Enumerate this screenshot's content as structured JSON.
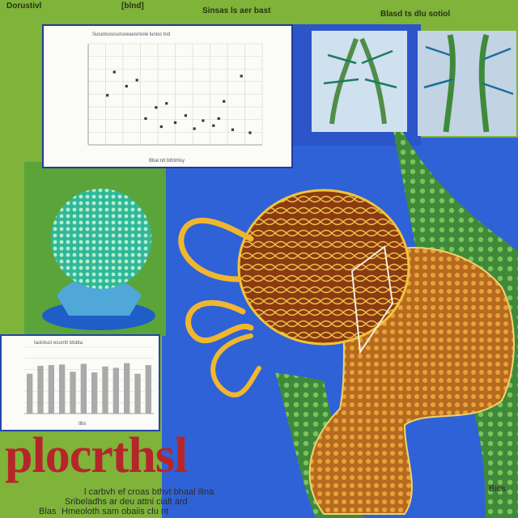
{
  "header": {
    "left_text": "Dorustivl",
    "left_text2": "[blnd]",
    "center_text": "Sinsas ls aer bast",
    "right_text": "Blasd ts dlu sotiol"
  },
  "title": "plocrthsl",
  "captions": {
    "line1": "l carbvh ef croas bthvt  bhaal  ilina",
    "line2": "Sribeladhs ar deu attni  cialt ard",
    "line3": "Hmeoloth sam obaiis clu nt",
    "bottom_left": "Blas",
    "bottom_right": "Bics"
  },
  "scatter_panel": {
    "title": "Suiuolsoscuiruseaosmisle luniss tnd",
    "xlabel": "Bbal ntt bthtihlsy"
  },
  "bar_panel": {
    "title": "Iaslotuct  ecurnlt  tdsbta",
    "xlabel": "tlbs"
  },
  "chart_data": [
    {
      "type": "scatter",
      "points": [
        {
          "x": 1.5,
          "y": 7.2
        },
        {
          "x": 1.1,
          "y": 4.9
        },
        {
          "x": 2.8,
          "y": 6.4
        },
        {
          "x": 3.3,
          "y": 2.6
        },
        {
          "x": 3.9,
          "y": 3.7
        },
        {
          "x": 4.5,
          "y": 4.1
        },
        {
          "x": 5.0,
          "y": 2.2
        },
        {
          "x": 5.6,
          "y": 2.9
        },
        {
          "x": 6.1,
          "y": 1.6
        },
        {
          "x": 6.6,
          "y": 2.4
        },
        {
          "x": 7.2,
          "y": 1.9
        },
        {
          "x": 7.8,
          "y": 4.3
        },
        {
          "x": 8.3,
          "y": 1.5
        },
        {
          "x": 8.8,
          "y": 6.8
        },
        {
          "x": 9.3,
          "y": 1.2
        },
        {
          "x": 2.2,
          "y": 5.8
        },
        {
          "x": 4.2,
          "y": 1.8
        },
        {
          "x": 7.5,
          "y": 2.6
        }
      ],
      "xlim": [
        0,
        10
      ],
      "ylim": [
        0,
        10
      ],
      "grid": true
    },
    {
      "type": "bar",
      "values": [
        6,
        7.2,
        7.3,
        7.4,
        6.3,
        7.5,
        6.2,
        7.1,
        6.9,
        7.6,
        6.0,
        7.3
      ],
      "ylim": [
        0,
        10
      ],
      "grid": true
    }
  ],
  "colors": {
    "background": "#7fb33a",
    "blue_field": "#2f62d6",
    "title_red": "#b5262a"
  }
}
